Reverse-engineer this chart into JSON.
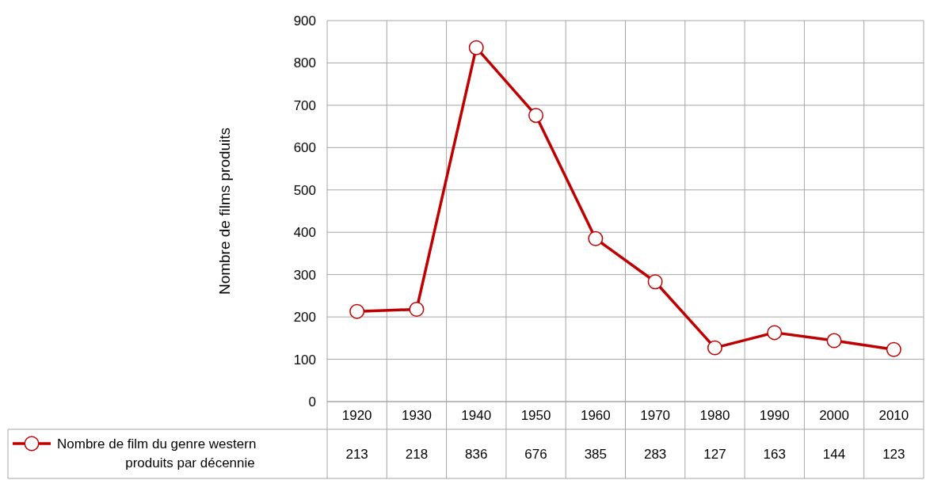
{
  "chart_data": {
    "type": "line",
    "ylabel": "Nombre de films produits",
    "categories": [
      "1920",
      "1930",
      "1940",
      "1950",
      "1960",
      "1970",
      "1980",
      "1990",
      "2000",
      "2010"
    ],
    "series": [
      {
        "name": "Nombre de film du genre western produits par décennie",
        "color": "#c00000",
        "values": [
          213,
          218,
          836,
          676,
          385,
          283,
          127,
          163,
          144,
          123
        ]
      }
    ],
    "ylim": [
      0,
      900
    ],
    "yticks": [
      0,
      100,
      200,
      300,
      400,
      500,
      600,
      700,
      800,
      900
    ],
    "grid": true,
    "marker": "circle",
    "line_style": "solid",
    "data_labels": true,
    "legend": "bottom left"
  }
}
